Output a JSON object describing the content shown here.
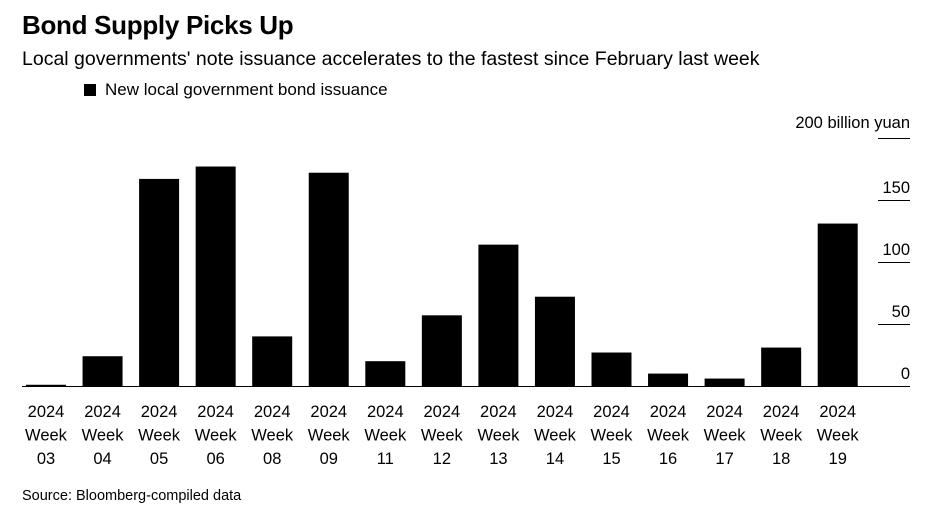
{
  "title": "Bond Supply Picks Up",
  "subtitle": "Local governments' note issuance accelerates to the fastest since February last week",
  "legend_label": "New local government bond issuance",
  "source": "Source: Bloomberg-compiled data",
  "colors": {
    "bar": "#000000",
    "axis": "#000000",
    "text": "#000000"
  },
  "chart_data": {
    "type": "bar",
    "title": "Bond Supply Picks Up",
    "subtitle": "Local governments' note issuance accelerates to the fastest since February last week",
    "ylabel": "200 billion yuan",
    "ylim": [
      0,
      200
    ],
    "yticks": [
      0,
      50,
      100,
      150
    ],
    "y_axis_position": "right",
    "grid": false,
    "legend": "top-left",
    "categories": [
      [
        "2024",
        "Week",
        "03"
      ],
      [
        "2024",
        "Week",
        "04"
      ],
      [
        "2024",
        "Week",
        "05"
      ],
      [
        "2024",
        "Week",
        "06"
      ],
      [
        "2024",
        "Week",
        "08"
      ],
      [
        "2024",
        "Week",
        "09"
      ],
      [
        "2024",
        "Week",
        "11"
      ],
      [
        "2024",
        "Week",
        "12"
      ],
      [
        "2024",
        "Week",
        "13"
      ],
      [
        "2024",
        "Week",
        "14"
      ],
      [
        "2024",
        "Week",
        "15"
      ],
      [
        "2024",
        "Week",
        "16"
      ],
      [
        "2024",
        "Week",
        "17"
      ],
      [
        "2024",
        "Week",
        "18"
      ],
      [
        "2024",
        "Week",
        "19"
      ]
    ],
    "series": [
      {
        "name": "New local government bond issuance",
        "values": [
          1,
          24,
          167,
          177,
          40,
          172,
          20,
          57,
          114,
          72,
          27,
          10,
          6,
          31,
          131
        ]
      }
    ]
  }
}
